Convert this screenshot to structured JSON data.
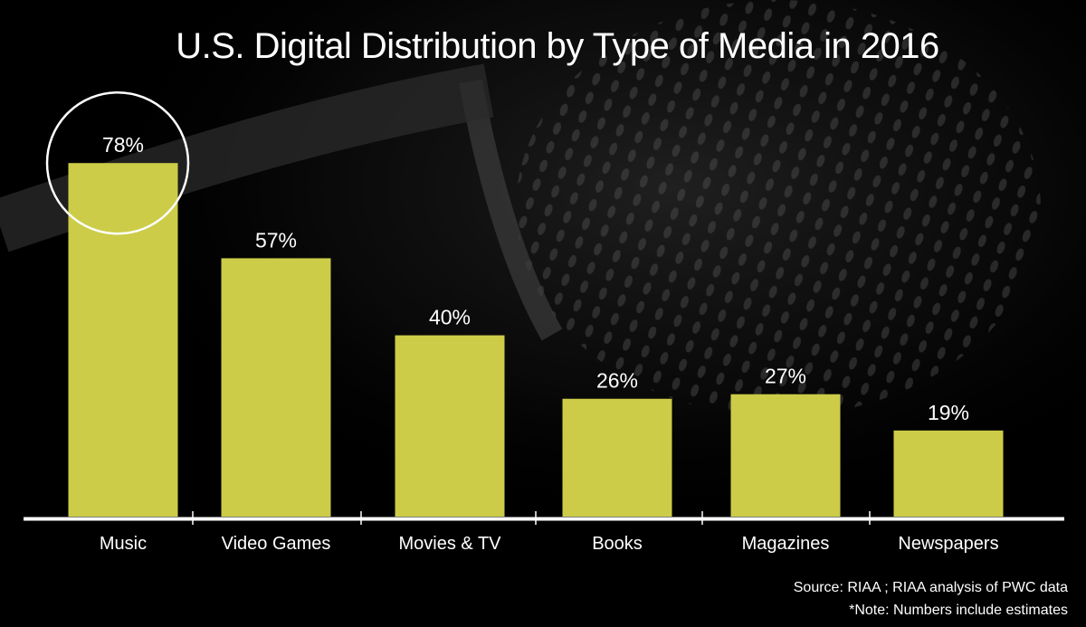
{
  "colors": {
    "background": "#000000",
    "bar": "#cccc48",
    "text": "#ffffff",
    "axis": "#ffffff",
    "highlight_ring": "#ffffff"
  },
  "footer": {
    "source": "Source: RIAA ; RIAA analysis of PWC data",
    "note": "*Note: Numbers include estimates"
  },
  "chart_data": {
    "type": "bar",
    "title": "U.S. Digital Distribution by Type of Media in 2016",
    "categories": [
      "Music",
      "Video Games",
      "Movies & TV",
      "Books",
      "Magazines",
      "Newspapers"
    ],
    "values": [
      78,
      57,
      40,
      26,
      27,
      19
    ],
    "value_labels": [
      "78%",
      "57%",
      "40%",
      "26%",
      "27%",
      "19%"
    ],
    "unit": "%",
    "ylim": [
      0,
      100
    ],
    "grid": false,
    "legend": "none",
    "highlighted_category": "Music"
  }
}
